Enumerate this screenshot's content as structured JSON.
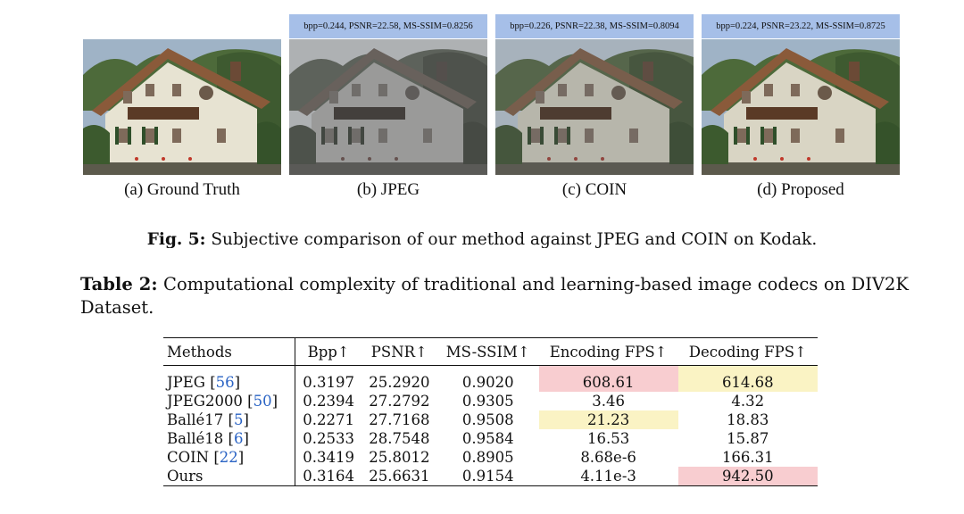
{
  "figure": {
    "panels": [
      {
        "caption": "(a) Ground Truth",
        "metrics": null,
        "tint": "#e7e3d2"
      },
      {
        "caption": "(b) JPEG",
        "metrics": "bpp=0.244, PSNR=22.58, MS-SSIM=0.8256",
        "tint": "#9a9a95"
      },
      {
        "caption": "(c) COIN",
        "metrics": "bpp=0.226, PSNR=22.38, MS-SSIM=0.8094",
        "tint": "#b9b6a2"
      },
      {
        "caption": "(d) Proposed",
        "metrics": "bpp=0.224, PSNR=23.22, MS-SSIM=0.8725",
        "tint": "#d9d5c4"
      }
    ],
    "caption_label": "Fig. 5:",
    "caption_text": "Subjective comparison of our method against JPEG and COIN on Kodak."
  },
  "table": {
    "caption_label": "Table 2:",
    "caption_text": "Computational complexity of traditional and learning-based image codecs on DIV2K Dataset.",
    "headers": [
      "Methods",
      "Bpp↑",
      "PSNR↑",
      "MS-SSIM↑",
      "Encoding FPS↑",
      "Decoding FPS↑"
    ],
    "rows": [
      {
        "method": "JPEG",
        "cite": "56",
        "bpp": "0.3197",
        "psnr": "25.2920",
        "msssim": "0.9020",
        "enc": "608.61",
        "dec": "614.68",
        "enc_hl": "red",
        "dec_hl": "yellow"
      },
      {
        "method": "JPEG2000",
        "cite": "50",
        "bpp": "0.2394",
        "psnr": "27.2792",
        "msssim": "0.9305",
        "enc": "3.46",
        "dec": "4.32",
        "enc_hl": "",
        "dec_hl": ""
      },
      {
        "method": "Ballé17",
        "cite": "5",
        "bpp": "0.2271",
        "psnr": "27.7168",
        "msssim": "0.9508",
        "enc": "21.23",
        "dec": "18.83",
        "enc_hl": "yellow",
        "dec_hl": ""
      },
      {
        "method": "Ballé18",
        "cite": "6",
        "bpp": "0.2533",
        "psnr": "28.7548",
        "msssim": "0.9584",
        "enc": "16.53",
        "dec": "15.87",
        "enc_hl": "",
        "dec_hl": ""
      },
      {
        "method": "COIN",
        "cite": "22",
        "bpp": "0.3419",
        "psnr": "25.8012",
        "msssim": "0.8905",
        "enc": "8.68e-6",
        "dec": "166.31",
        "enc_hl": "",
        "dec_hl": ""
      },
      {
        "method": "Ours",
        "cite": "",
        "bpp": "0.3164",
        "psnr": "25.6631",
        "msssim": "0.9154",
        "enc": "4.11e-3",
        "dec": "942.50",
        "enc_hl": "",
        "dec_hl": "red"
      }
    ]
  }
}
